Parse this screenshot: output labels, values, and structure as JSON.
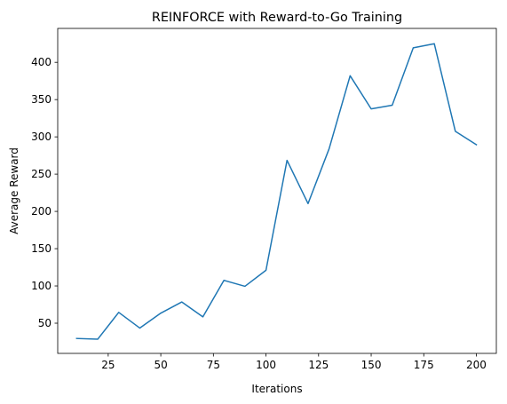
{
  "chart_data": {
    "type": "line",
    "title": "REINFORCE with Reward-to-Go Training",
    "xlabel": "Iterations",
    "ylabel": "Average Reward",
    "xlim": [
      1,
      209.5
    ],
    "ylim": [
      9.5,
      445.5
    ],
    "xticks": [
      25,
      50,
      75,
      100,
      125,
      150,
      175,
      200
    ],
    "yticks": [
      50,
      100,
      150,
      200,
      250,
      300,
      350,
      400
    ],
    "grid": false,
    "legend": "none",
    "series": [
      {
        "color": "#1f77b4",
        "x": [
          10,
          20,
          30,
          40,
          50,
          60,
          70,
          80,
          90,
          100,
          110,
          120,
          130,
          140,
          150,
          160,
          170,
          180,
          190,
          200
        ],
        "y": [
          29.5,
          28.5,
          64.5,
          43.5,
          63.5,
          78.5,
          58.5,
          107.5,
          99.5,
          121,
          268.5,
          210.5,
          284,
          382,
          337.5,
          342.5,
          419.5,
          425,
          307.5,
          289.5
        ]
      }
    ]
  }
}
